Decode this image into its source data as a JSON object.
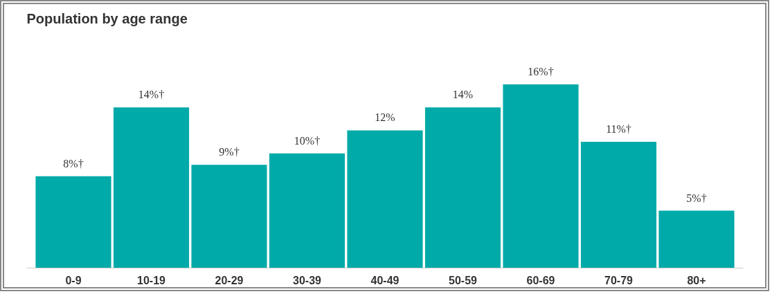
{
  "chart_data": {
    "type": "bar",
    "title": "Population by age range",
    "categories": [
      "0-9",
      "10-19",
      "20-29",
      "30-39",
      "40-49",
      "50-59",
      "60-69",
      "70-79",
      "80+"
    ],
    "values": [
      8,
      14,
      9,
      10,
      12,
      14,
      16,
      11,
      5
    ],
    "value_labels": [
      "8%†",
      "14%†",
      "9%†",
      "10%†",
      "12%",
      "14%",
      "16%†",
      "11%†",
      "5%†"
    ],
    "color": "#00aaa8",
    "grid": false
  }
}
